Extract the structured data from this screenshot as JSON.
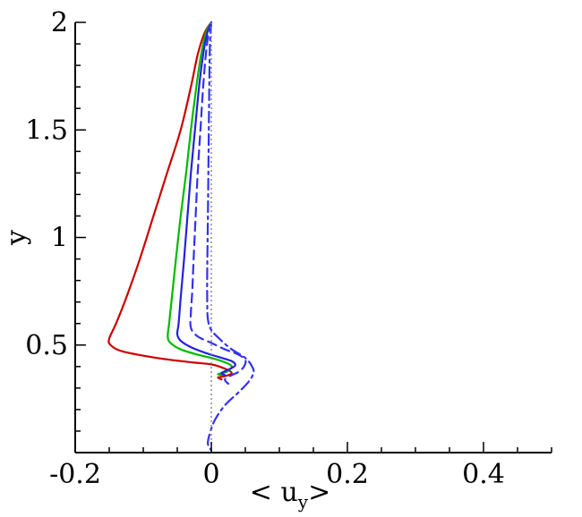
{
  "chart_data": {
    "type": "line",
    "xlabel": "< u",
    "xlabel_subscript": "y",
    "xlabel_suffix": ">",
    "ylabel": "y",
    "xlim": [
      -0.2,
      0.5
    ],
    "ylim": [
      0,
      2
    ],
    "x_ticks": [
      -0.2,
      0,
      0.2,
      0.4
    ],
    "x_tick_labels": [
      "-0.2",
      "0",
      "0.2",
      "0.4"
    ],
    "y_ticks": [
      0.5,
      1,
      1.5,
      2
    ],
    "y_tick_labels": [
      "0.5",
      "1",
      "1.5",
      "2"
    ],
    "grid": false,
    "reference_line": {
      "x": 0,
      "style": "dotted",
      "color": "#888888"
    },
    "series": [
      {
        "color": "#cc0000",
        "dash": "solid",
        "points": [
          [
            0.0,
            2.0
          ],
          [
            -0.01,
            1.95
          ],
          [
            -0.02,
            1.85
          ],
          [
            -0.03,
            1.7
          ],
          [
            -0.045,
            1.5
          ],
          [
            -0.065,
            1.3
          ],
          [
            -0.085,
            1.1
          ],
          [
            -0.105,
            0.9
          ],
          [
            -0.125,
            0.72
          ],
          [
            -0.14,
            0.6
          ],
          [
            -0.15,
            0.53
          ],
          [
            -0.148,
            0.5
          ],
          [
            -0.13,
            0.47
          ],
          [
            -0.08,
            0.44
          ],
          [
            -0.03,
            0.42
          ],
          [
            0.0,
            0.41
          ],
          [
            0.02,
            0.39
          ],
          [
            0.03,
            0.37
          ],
          [
            0.02,
            0.355
          ],
          [
            0.01,
            0.35
          ],
          [
            0.015,
            0.34
          ]
        ]
      },
      {
        "color": "#00bb00",
        "dash": "solid",
        "points": [
          [
            0.0,
            2.0
          ],
          [
            -0.008,
            1.95
          ],
          [
            -0.015,
            1.85
          ],
          [
            -0.022,
            1.7
          ],
          [
            -0.03,
            1.5
          ],
          [
            -0.037,
            1.3
          ],
          [
            -0.045,
            1.1
          ],
          [
            -0.052,
            0.9
          ],
          [
            -0.058,
            0.72
          ],
          [
            -0.062,
            0.6
          ],
          [
            -0.064,
            0.54
          ],
          [
            -0.06,
            0.51
          ],
          [
            -0.045,
            0.48
          ],
          [
            -0.02,
            0.455
          ],
          [
            0.0,
            0.44
          ],
          [
            0.02,
            0.42
          ],
          [
            0.03,
            0.4
          ],
          [
            0.022,
            0.375
          ],
          [
            0.01,
            0.365
          ],
          [
            0.02,
            0.36
          ]
        ]
      },
      {
        "color": "#2222dd",
        "dash": "solid",
        "points": [
          [
            0.0,
            2.0
          ],
          [
            -0.006,
            1.95
          ],
          [
            -0.012,
            1.85
          ],
          [
            -0.018,
            1.7
          ],
          [
            -0.024,
            1.5
          ],
          [
            -0.03,
            1.3
          ],
          [
            -0.035,
            1.1
          ],
          [
            -0.04,
            0.9
          ],
          [
            -0.045,
            0.72
          ],
          [
            -0.048,
            0.6
          ],
          [
            -0.05,
            0.55
          ],
          [
            -0.045,
            0.52
          ],
          [
            -0.03,
            0.49
          ],
          [
            -0.01,
            0.465
          ],
          [
            0.01,
            0.445
          ],
          [
            0.03,
            0.425
          ],
          [
            0.035,
            0.405
          ],
          [
            0.025,
            0.385
          ],
          [
            0.015,
            0.37
          ],
          [
            0.02,
            0.36
          ]
        ]
      },
      {
        "color": "#3333ee",
        "dash": "dashed",
        "points": [
          [
            0.0,
            2.0
          ],
          [
            -0.004,
            1.95
          ],
          [
            -0.008,
            1.85
          ],
          [
            -0.012,
            1.7
          ],
          [
            -0.016,
            1.5
          ],
          [
            -0.02,
            1.3
          ],
          [
            -0.023,
            1.1
          ],
          [
            -0.026,
            0.9
          ],
          [
            -0.028,
            0.75
          ],
          [
            -0.03,
            0.65
          ],
          [
            -0.03,
            0.58
          ],
          [
            -0.02,
            0.54
          ],
          [
            0.0,
            0.51
          ],
          [
            0.02,
            0.48
          ],
          [
            0.04,
            0.455
          ],
          [
            0.05,
            0.43
          ],
          [
            0.048,
            0.4
          ],
          [
            0.04,
            0.375
          ],
          [
            0.03,
            0.36
          ],
          [
            0.02,
            0.34
          ],
          [
            0.025,
            0.32
          ]
        ]
      },
      {
        "color": "#3333ee",
        "dash": "dashdot",
        "points": [
          [
            0.0,
            2.0
          ],
          [
            -0.002,
            1.9
          ],
          [
            -0.003,
            1.7
          ],
          [
            -0.004,
            1.4
          ],
          [
            -0.005,
            1.1
          ],
          [
            -0.006,
            0.85
          ],
          [
            -0.006,
            0.7
          ],
          [
            -0.005,
            0.62
          ],
          [
            0.0,
            0.57
          ],
          [
            0.015,
            0.52
          ],
          [
            0.03,
            0.48
          ],
          [
            0.05,
            0.44
          ],
          [
            0.06,
            0.4
          ],
          [
            0.062,
            0.37
          ],
          [
            0.055,
            0.33
          ],
          [
            0.04,
            0.28
          ],
          [
            0.02,
            0.22
          ],
          [
            0.005,
            0.15
          ],
          [
            -0.003,
            0.08
          ],
          [
            -0.005,
            0.04
          ],
          [
            0.0,
            0.01
          ]
        ]
      }
    ]
  }
}
